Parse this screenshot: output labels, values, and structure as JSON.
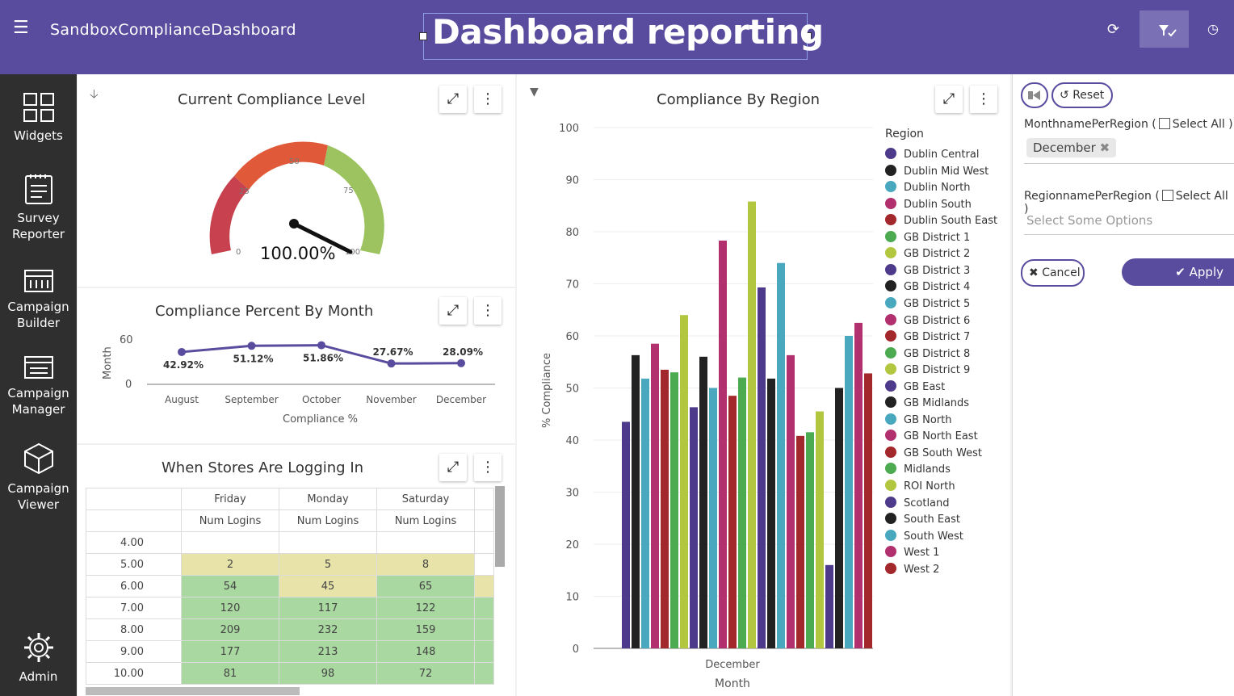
{
  "header": {
    "menu_icon": "hamburger-icon",
    "app_title": "SandboxComplianceDashboard",
    "page_title": "Dashboard reporting",
    "refresh_icon": "refresh-icon",
    "filter_icon": "filter-check-icon",
    "clock_icon": "clock-icon",
    "bar_color": "#594c9e"
  },
  "sidebar": {
    "items": [
      {
        "label_1": "Widgets",
        "label_2": "",
        "icon": "grid-icon"
      },
      {
        "label_1": "Survey",
        "label_2": "Reporter",
        "icon": "clipboard-icon"
      },
      {
        "label_1": "Campaign",
        "label_2": "Builder",
        "icon": "calendar-icon"
      },
      {
        "label_1": "Campaign",
        "label_2": "Manager",
        "icon": "calendar-list-icon"
      },
      {
        "label_1": "Campaign",
        "label_2": "Viewer",
        "icon": "cube-icon"
      },
      {
        "label_1": "Admin",
        "label_2": "",
        "icon": "gear-icon"
      }
    ]
  },
  "gauge_widget": {
    "title": "Current Compliance Level",
    "value_label": "100.00%",
    "value": 100,
    "ticks": [
      "0",
      "25",
      "50",
      "75",
      "100"
    ]
  },
  "month_widget": {
    "title": "Compliance Percent By Month",
    "y_axis_label": "Month",
    "x_axis_label": "Compliance %",
    "y_ticks": [
      "60",
      "0"
    ]
  },
  "logins_widget": {
    "title": "When Stores Are Logging In",
    "days": [
      "Friday",
      "Monday",
      "Saturday"
    ],
    "measure": "Num Logins",
    "rows": [
      {
        "hour": "4.00",
        "values": [
          "",
          "",
          ""
        ],
        "shade": [
          "",
          "",
          "",
          ""
        ]
      },
      {
        "hour": "5.00",
        "values": [
          "2",
          "5",
          "8"
        ],
        "shade": [
          "hl",
          "hl",
          "hl",
          ""
        ]
      },
      {
        "hour": "6.00",
        "values": [
          "54",
          "45",
          "65"
        ],
        "shade": [
          "hg",
          "hl",
          "hg",
          "hl"
        ]
      },
      {
        "hour": "7.00",
        "values": [
          "120",
          "117",
          "122"
        ],
        "shade": [
          "hg",
          "hg",
          "hg",
          "hg"
        ]
      },
      {
        "hour": "8.00",
        "values": [
          "209",
          "232",
          "159"
        ],
        "shade": [
          "hg",
          "hg",
          "hg",
          "hg"
        ]
      },
      {
        "hour": "9.00",
        "values": [
          "177",
          "213",
          "148"
        ],
        "shade": [
          "hg",
          "hg",
          "hg",
          "hg"
        ]
      },
      {
        "hour": "10.00",
        "values": [
          "81",
          "98",
          "72"
        ],
        "shade": [
          "hg",
          "hg",
          "hg",
          "hg"
        ]
      }
    ]
  },
  "region_widget": {
    "title": "Compliance By Region",
    "legend_title": "Region"
  },
  "filter_panel": {
    "reset_label": "Reset",
    "month_filter_label": "MonthnamePerRegion (",
    "select_all_label": "Select All )",
    "month_selected": "December",
    "region_filter_label": "RegionnamePerRegion (",
    "region_placeholder": "Select Some Options",
    "cancel_label": "Cancel",
    "apply_label": "Apply"
  },
  "chart_data": [
    {
      "type": "line",
      "categories": [
        "August",
        "September",
        "October",
        "November",
        "December"
      ],
      "values": [
        42.92,
        51.12,
        51.86,
        27.67,
        28.09
      ],
      "data_labels": [
        "42.92%",
        "51.12%",
        "51.86%",
        "27.67%",
        "28.09%"
      ],
      "xlabel": "Compliance %",
      "ylabel": "Month",
      "ylim": [
        0,
        60
      ],
      "color": "#594c9e"
    },
    {
      "type": "bar",
      "title": "Compliance By Region",
      "xlabel": "Month",
      "ylabel": "% Compliance",
      "ylim": [
        0,
        100
      ],
      "y_ticks": [
        0,
        10,
        20,
        30,
        40,
        50,
        60,
        70,
        80,
        90,
        100
      ],
      "categories": [
        "December"
      ],
      "legend_title": "Region",
      "legend_position": "right",
      "grid": true,
      "series": [
        {
          "name": "Dublin Central",
          "values": [
            43.5
          ],
          "color": "#4e3a8a"
        },
        {
          "name": "Dublin Mid West",
          "values": [
            56.3
          ],
          "color": "#222222"
        },
        {
          "name": "Dublin North",
          "values": [
            51.8
          ],
          "color": "#4aa8be"
        },
        {
          "name": "Dublin South",
          "values": [
            58.5
          ],
          "color": "#b2306e"
        },
        {
          "name": "Dublin South East",
          "values": [
            53.5
          ],
          "color": "#a3282b"
        },
        {
          "name": "GB District 1",
          "values": [
            53
          ],
          "color": "#4caa50"
        },
        {
          "name": "GB District 2",
          "values": [
            64
          ],
          "color": "#b3c640"
        },
        {
          "name": "GB District 3",
          "values": [
            46.3
          ],
          "color": "#4e3a8a"
        },
        {
          "name": "GB District 4",
          "values": [
            56
          ],
          "color": "#222222"
        },
        {
          "name": "GB District 5",
          "values": [
            50
          ],
          "color": "#4aa8be"
        },
        {
          "name": "GB District 6",
          "values": [
            78.3
          ],
          "color": "#b2306e"
        },
        {
          "name": "GB District 7",
          "values": [
            48.5
          ],
          "color": "#a3282b"
        },
        {
          "name": "GB District 8",
          "values": [
            52
          ],
          "color": "#4caa50"
        },
        {
          "name": "GB District 9",
          "values": [
            85.8
          ],
          "color": "#b3c640"
        },
        {
          "name": "GB East",
          "values": [
            69.3
          ],
          "color": "#4e3a8a"
        },
        {
          "name": "GB Midlands",
          "values": [
            51.8
          ],
          "color": "#222222"
        },
        {
          "name": "GB North",
          "values": [
            74
          ],
          "color": "#4aa8be"
        },
        {
          "name": "GB North East",
          "values": [
            56.3
          ],
          "color": "#b2306e"
        },
        {
          "name": "GB South West",
          "values": [
            40.8
          ],
          "color": "#a3282b"
        },
        {
          "name": "Midlands",
          "values": [
            41.5
          ],
          "color": "#4caa50"
        },
        {
          "name": "ROI North",
          "values": [
            45.5
          ],
          "color": "#b3c640"
        },
        {
          "name": "Scotland",
          "values": [
            16
          ],
          "color": "#4e3a8a"
        },
        {
          "name": "South East",
          "values": [
            50
          ],
          "color": "#222222"
        },
        {
          "name": "South West",
          "values": [
            60
          ],
          "color": "#4aa8be"
        },
        {
          "name": "West 1",
          "values": [
            62.5
          ],
          "color": "#b2306e"
        },
        {
          "name": "West 2",
          "values": [
            52.8
          ],
          "color": "#a3282b"
        }
      ]
    }
  ]
}
